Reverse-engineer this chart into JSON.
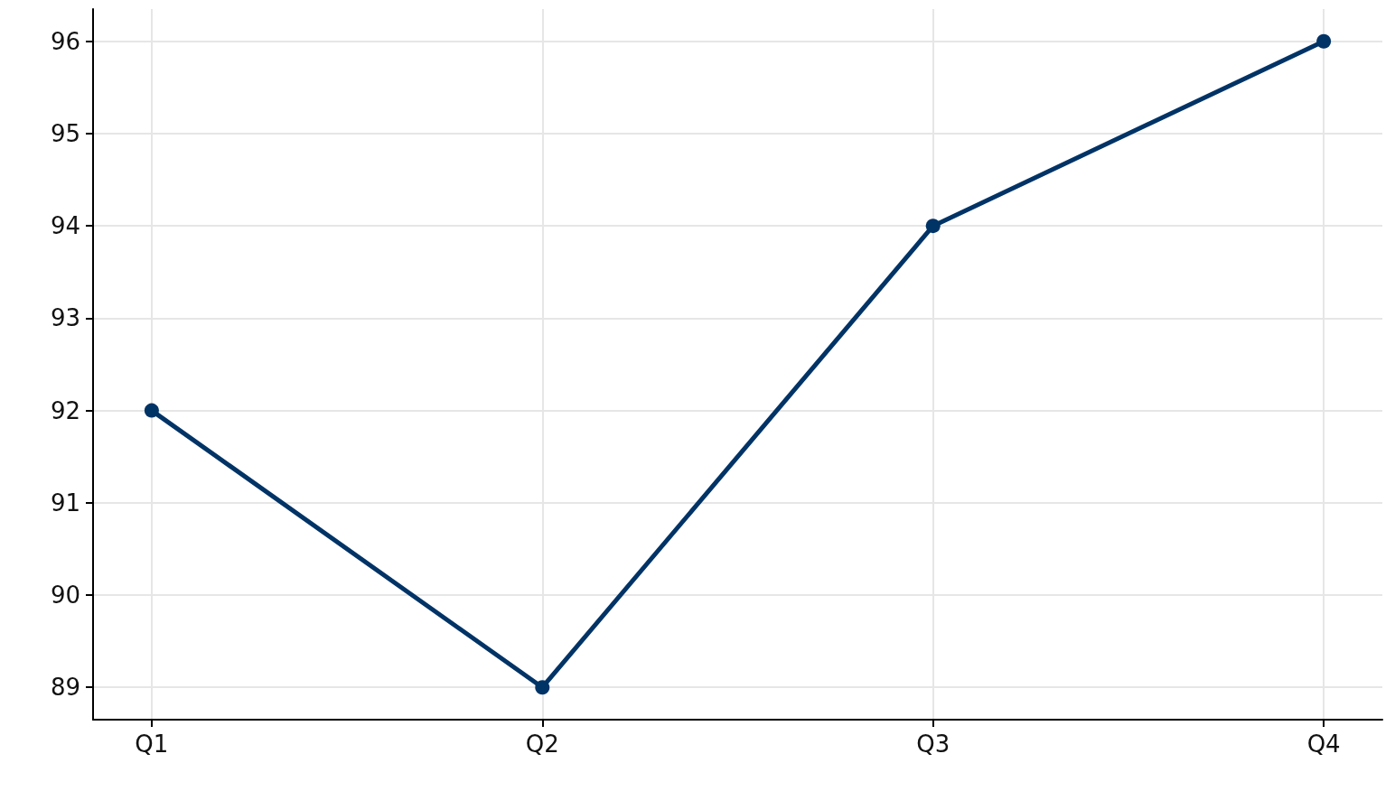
{
  "chart_data": {
    "type": "line",
    "categories": [
      "Q1",
      "Q2",
      "Q3",
      "Q4"
    ],
    "series": [
      {
        "color": "#003366",
        "values": [
          92,
          89,
          94,
          96
        ]
      }
    ],
    "ylim": [
      88.65,
      96.35
    ],
    "yticks": [
      89,
      90,
      91,
      92,
      93,
      94,
      95,
      96
    ],
    "grid": true,
    "marker": "circle",
    "line_style": "solid"
  }
}
